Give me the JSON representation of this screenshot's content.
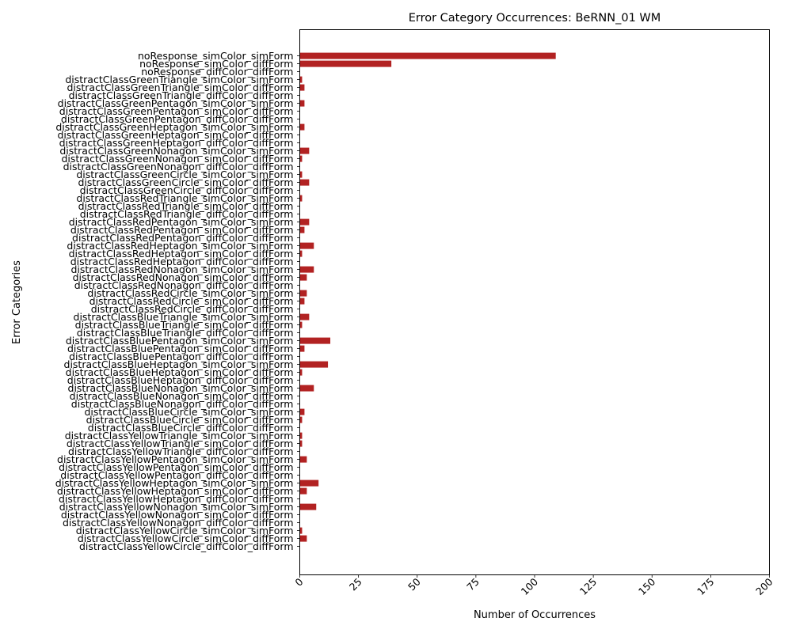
{
  "chart_data": {
    "type": "bar",
    "orientation": "horizontal",
    "title": "Error Category Occurrences: BeRNN_01 WM",
    "xlabel": "Number of Occurrences",
    "ylabel": "Error Categories",
    "xlim": [
      0,
      200
    ],
    "xticks": [
      0,
      25,
      50,
      75,
      100,
      125,
      150,
      175,
      200
    ],
    "bar_color": "#b22222",
    "grid": false,
    "categories": [
      "noResponse_simColor_simForm",
      "noResponse_simColor_diffForm",
      "noResponse_diffColor_diffForm",
      "distractClassGreenTriangle_simColor_simForm",
      "distractClassGreenTriangle_simColor_diffForm",
      "distractClassGreenTriangle_diffColor_diffForm",
      "distractClassGreenPentagon_simColor_simForm",
      "distractClassGreenPentagon_simColor_diffForm",
      "distractClassGreenPentagon_diffColor_diffForm",
      "distractClassGreenHeptagon_simColor_simForm",
      "distractClassGreenHeptagon_simColor_diffForm",
      "distractClassGreenHeptagon_diffColor_diffForm",
      "distractClassGreenNonagon_simColor_simForm",
      "distractClassGreenNonagon_simColor_diffForm",
      "distractClassGreenNonagon_diffColor_diffForm",
      "distractClassGreenCircle_simColor_simForm",
      "distractClassGreenCircle_simColor_diffForm",
      "distractClassGreenCircle_diffColor_diffForm",
      "distractClassRedTriangle_simColor_simForm",
      "distractClassRedTriangle_simColor_diffForm",
      "distractClassRedTriangle_diffColor_diffForm",
      "distractClassRedPentagon_simColor_simForm",
      "distractClassRedPentagon_simColor_diffForm",
      "distractClassRedPentagon_diffColor_diffForm",
      "distractClassRedHeptagon_simColor_simForm",
      "distractClassRedHeptagon_simColor_diffForm",
      "distractClassRedHeptagon_diffColor_diffForm",
      "distractClassRedNonagon_simColor_simForm",
      "distractClassRedNonagon_simColor_diffForm",
      "distractClassRedNonagon_diffColor_diffForm",
      "distractClassRedCircle_simColor_simForm",
      "distractClassRedCircle_simColor_diffForm",
      "distractClassRedCircle_diffColor_diffForm",
      "distractClassBlueTriangle_simColor_simForm",
      "distractClassBlueTriangle_simColor_diffForm",
      "distractClassBlueTriangle_diffColor_diffForm",
      "distractClassBluePentagon_simColor_simForm",
      "distractClassBluePentagon_simColor_diffForm",
      "distractClassBluePentagon_diffColor_diffForm",
      "distractClassBlueHeptagon_simColor_simForm",
      "distractClassBlueHeptagon_simColor_diffForm",
      "distractClassBlueHeptagon_diffColor_diffForm",
      "distractClassBlueNonagon_simColor_simForm",
      "distractClassBlueNonagon_simColor_diffForm",
      "distractClassBlueNonagon_diffColor_diffForm",
      "distractClassBlueCircle_simColor_simForm",
      "distractClassBlueCircle_simColor_diffForm",
      "distractClassBlueCircle_diffColor_diffForm",
      "distractClassYellowTriangle_simColor_simForm",
      "distractClassYellowTriangle_simColor_diffForm",
      "distractClassYellowTriangle_diffColor_diffForm",
      "distractClassYellowPentagon_simColor_simForm",
      "distractClassYellowPentagon_simColor_diffForm",
      "distractClassYellowPentagon_diffColor_diffForm",
      "distractClassYellowHeptagon_simColor_simForm",
      "distractClassYellowHeptagon_simColor_diffForm",
      "distractClassYellowHeptagon_diffColor_diffForm",
      "distractClassYellowNonagon_simColor_simForm",
      "distractClassYellowNonagon_simColor_diffForm",
      "distractClassYellowNonagon_diffColor_diffForm",
      "distractClassYellowCircle_simColor_simForm",
      "distractClassYellowCircle_simColor_diffForm",
      "distractClassYellowCircle_diffColor_diffForm"
    ],
    "values": [
      109,
      39,
      0,
      1,
      2,
      0,
      2,
      0,
      0,
      2,
      0,
      0,
      4,
      1,
      0,
      1,
      4,
      0,
      1,
      0,
      0,
      4,
      2,
      0,
      6,
      1,
      0,
      6,
      3,
      0,
      3,
      2,
      0,
      4,
      1,
      0,
      13,
      2,
      0,
      12,
      1,
      0,
      6,
      0,
      0,
      2,
      1,
      0,
      1,
      1,
      0,
      3,
      0,
      0,
      8,
      3,
      0,
      7,
      0,
      0,
      1,
      3,
      0
    ]
  }
}
